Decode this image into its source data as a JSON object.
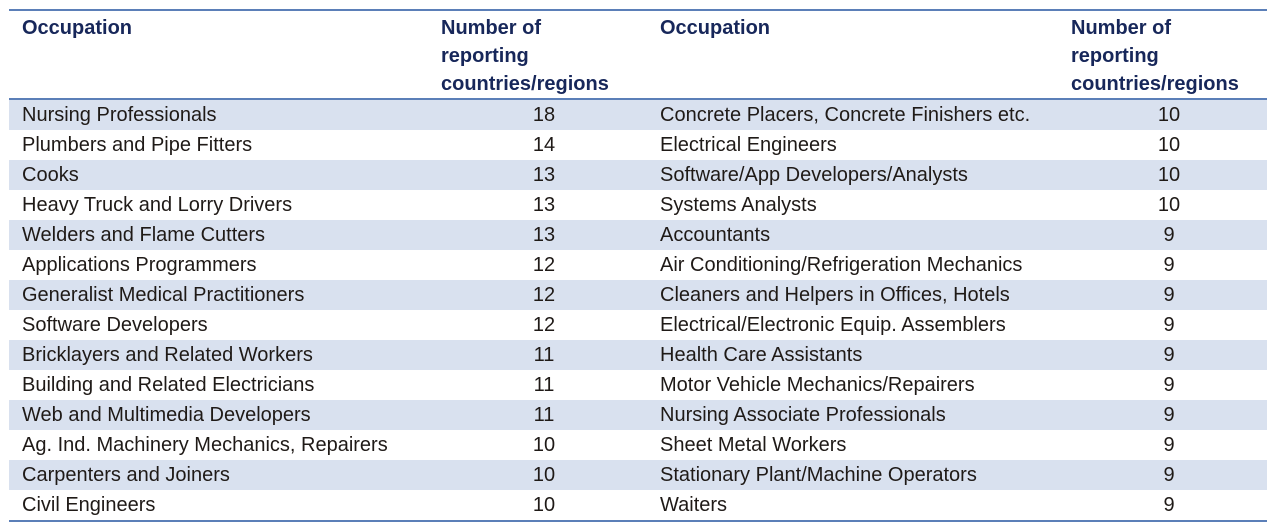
{
  "headers": {
    "occupation": "Occupation",
    "count": [
      "Number of",
      "reporting",
      "countries/regions"
    ]
  },
  "rows": [
    {
      "left": "Nursing Professionals",
      "left_n": "18",
      "right": "Concrete Placers, Concrete Finishers etc.",
      "right_n": "10"
    },
    {
      "left": "Plumbers and Pipe Fitters",
      "left_n": "14",
      "right": "Electrical Engineers",
      "right_n": "10"
    },
    {
      "left": "Cooks",
      "left_n": "13",
      "right": "Software/App Developers/Analysts",
      "right_n": "10"
    },
    {
      "left": "Heavy Truck and Lorry Drivers",
      "left_n": "13",
      "right": "Systems Analysts",
      "right_n": "10"
    },
    {
      "left": "Welders and Flame Cutters",
      "left_n": "13",
      "right": "Accountants",
      "right_n": "9"
    },
    {
      "left": "Applications Programmers",
      "left_n": "12",
      "right": "Air Conditioning/Refrigeration Mechanics",
      "right_n": "9"
    },
    {
      "left": "Generalist Medical Practitioners",
      "left_n": "12",
      "right": "Cleaners and Helpers in Offices, Hotels",
      "right_n": "9"
    },
    {
      "left": "Software Developers",
      "left_n": "12",
      "right": "Electrical/Electronic Equip. Assemblers",
      "right_n": "9"
    },
    {
      "left": "Bricklayers and Related Workers",
      "left_n": "11",
      "right": "Health Care Assistants",
      "right_n": "9"
    },
    {
      "left": "Building and Related Electricians",
      "left_n": "11",
      "right": "Motor Vehicle Mechanics/Repairers",
      "right_n": "9"
    },
    {
      "left": "Web and Multimedia Developers",
      "left_n": "11",
      "right": "Nursing Associate Professionals",
      "right_n": "9"
    },
    {
      "left": "Ag. Ind. Machinery Mechanics, Repairers",
      "left_n": "10",
      "right": "Sheet Metal Workers",
      "right_n": "9"
    },
    {
      "left": "Carpenters and Joiners",
      "left_n": "10",
      "right": "Stationary Plant/Machine Operators",
      "right_n": "9"
    },
    {
      "left": "Civil Engineers",
      "left_n": "10",
      "right": "Waiters",
      "right_n": "9"
    }
  ],
  "colors": {
    "header_text": "#17275a",
    "rule": "#5b7fb8",
    "row_shade": "#d9e1ef"
  }
}
